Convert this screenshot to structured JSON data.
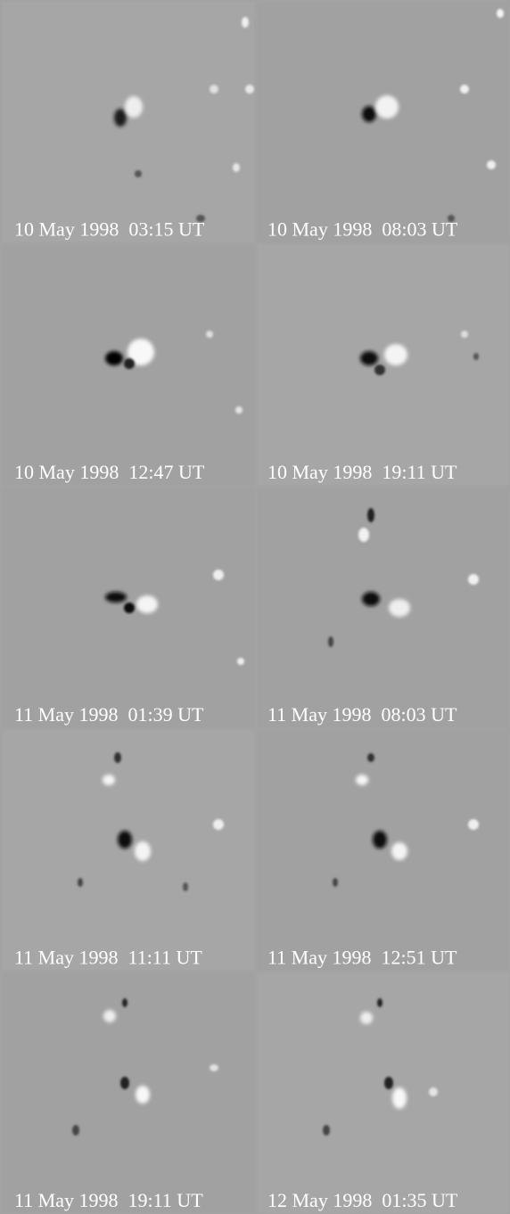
{
  "panels": [
    {
      "label": "10 May 1998  03:15 UT"
    },
    {
      "label": "10 May 1998  08:03 UT"
    },
    {
      "label": "10 May 1998  12:47 UT"
    },
    {
      "label": "10 May 1998  19:11 UT"
    },
    {
      "label": "11 May 1998  01:39 UT"
    },
    {
      "label": "11 May 1998  08:03 UT"
    },
    {
      "label": "11 May 1998  11:11 UT"
    },
    {
      "label": "11 May 1998  12:51 UT"
    },
    {
      "label": "11 May 1998  19:11 UT"
    },
    {
      "label": "12 May 1998  01:35 UT"
    }
  ]
}
